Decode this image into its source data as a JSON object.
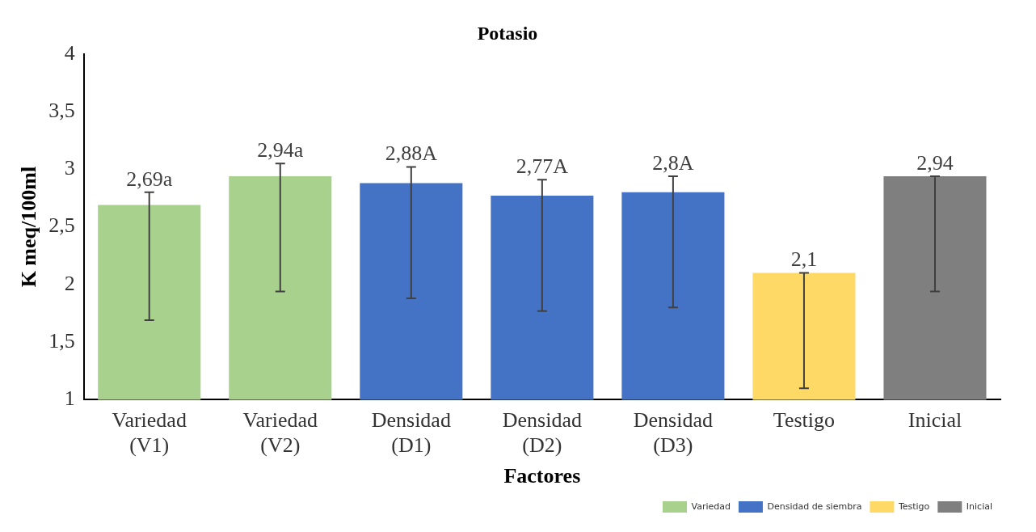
{
  "chart_data": {
    "type": "bar",
    "title": "Potasio",
    "xlabel": "Factores",
    "ylabel": "K meq/100ml",
    "categories": [
      "Variedad (V1)",
      "Variedad (V2)",
      "Densidad (D1)",
      "Densidad (D2)",
      "Densidad (D3)",
      "Testigo",
      "Inicial"
    ],
    "series": [
      {
        "name": "Variedad",
        "color": "#a9d18e",
        "values": [
          2.69,
          2.94,
          null,
          null,
          null,
          null,
          null
        ],
        "errors": [
          [
            1.69,
            2.8
          ],
          [
            1.94,
            3.05
          ],
          null,
          null,
          null,
          null,
          null
        ],
        "value_labels": [
          "2,69a",
          "2,94a",
          null,
          null,
          null,
          null,
          null
        ]
      },
      {
        "name": "Densidad de siembra",
        "color": "#4472c4",
        "values": [
          null,
          null,
          2.88,
          2.77,
          2.8,
          null,
          null
        ],
        "errors": [
          null,
          null,
          [
            1.88,
            3.02
          ],
          [
            1.77,
            2.91
          ],
          [
            1.8,
            2.94
          ],
          null,
          null
        ],
        "value_labels": [
          null,
          null,
          "2,88A",
          "2,77A",
          "2,8A",
          null,
          null
        ]
      },
      {
        "name": "Testigo",
        "color": "#ffd966",
        "values": [
          null,
          null,
          null,
          null,
          null,
          2.1,
          null
        ],
        "errors": [
          null,
          null,
          null,
          null,
          null,
          [
            1.1,
            2.1
          ],
          null
        ],
        "value_labels": [
          null,
          null,
          null,
          null,
          null,
          "2,1",
          null
        ]
      },
      {
        "name": "Inicial",
        "color": "#7f7f7f",
        "values": [
          null,
          null,
          null,
          null,
          null,
          null,
          2.94
        ],
        "errors": [
          null,
          null,
          null,
          null,
          null,
          null,
          [
            1.94,
            2.94
          ]
        ],
        "value_labels": [
          null,
          null,
          null,
          null,
          null,
          null,
          "2,94"
        ]
      }
    ],
    "ylim": [
      1,
      4
    ],
    "yticks": [
      {
        "value": 1,
        "label": "1"
      },
      {
        "value": 1.5,
        "label": "1,5"
      },
      {
        "value": 2,
        "label": "2"
      },
      {
        "value": 2.5,
        "label": "2,5"
      },
      {
        "value": 3,
        "label": "3"
      },
      {
        "value": 3.5,
        "label": "3,5"
      },
      {
        "value": 4,
        "label": "4"
      }
    ],
    "grid": false,
    "legend": "bottom right"
  }
}
